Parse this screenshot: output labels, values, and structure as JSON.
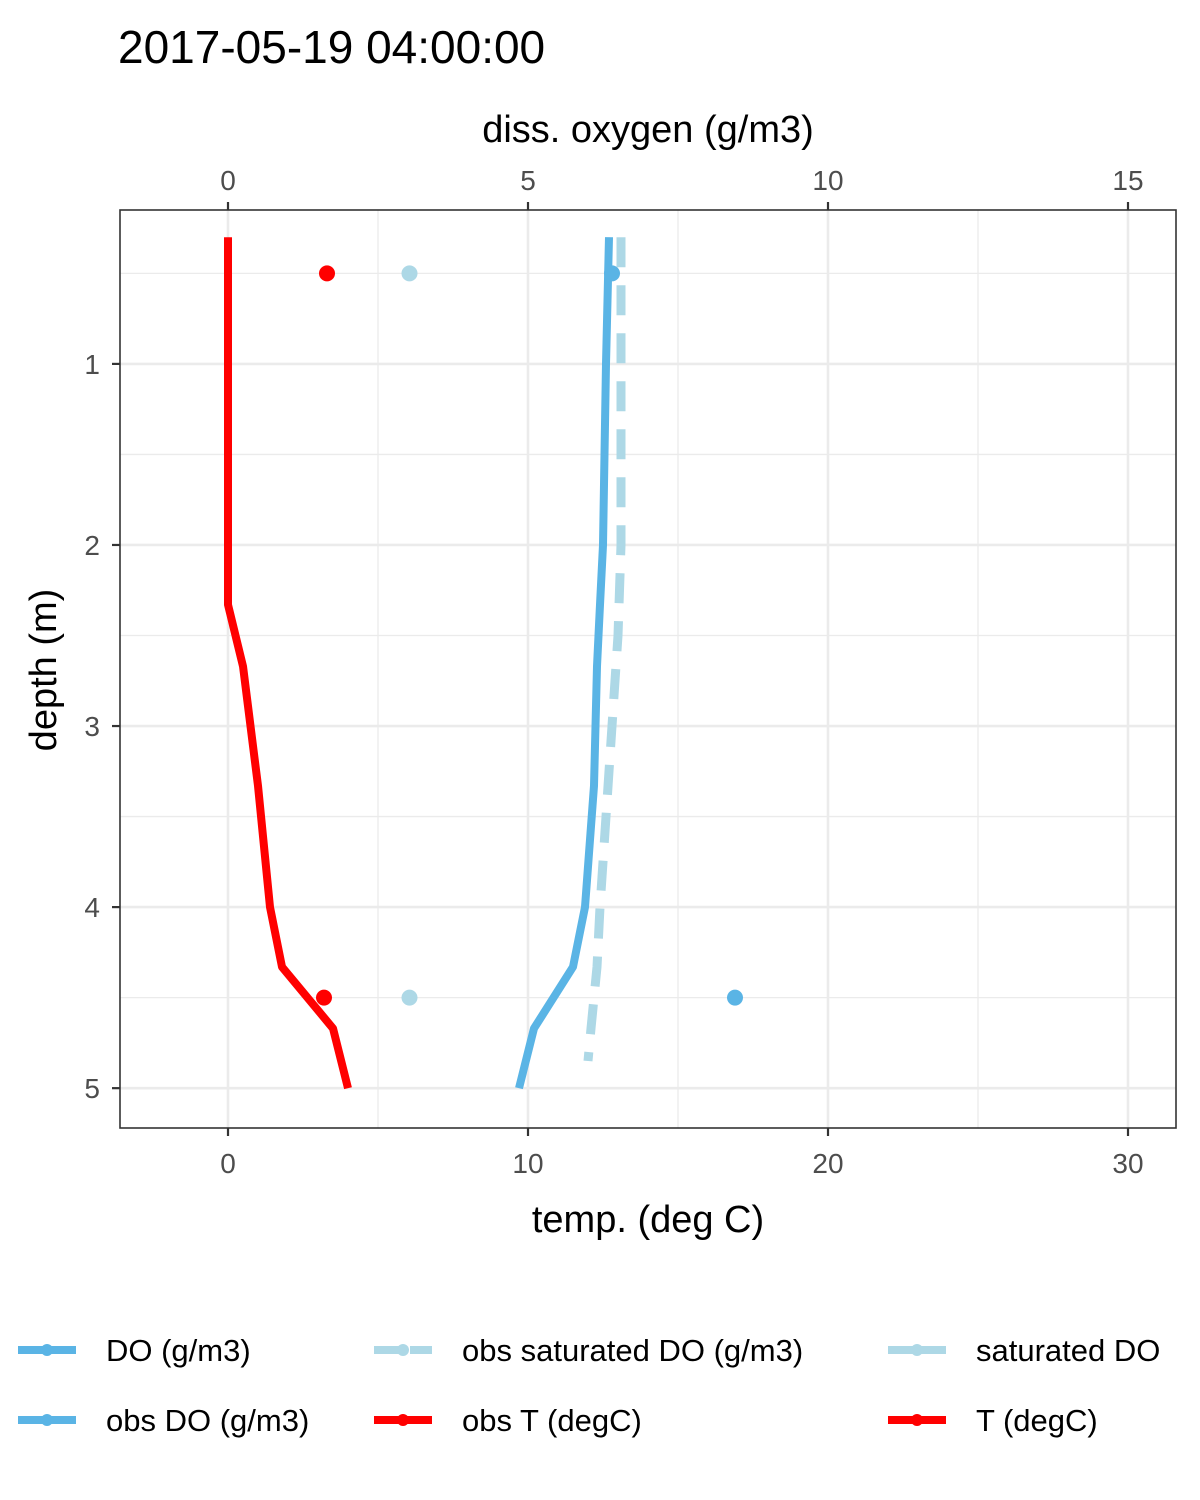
{
  "chart_data": {
    "type": "line",
    "title": "2017-05-19 04:00:00",
    "xlabel": "temp. (deg C)",
    "x2label": "diss. oxygen (g/m3)",
    "ylabel": "depth (m)",
    "xlim": [
      -3.6,
      31.6
    ],
    "x2lim": [
      -1.8,
      15.8
    ],
    "ylim": [
      0.15,
      5.22
    ],
    "y_reversed": true,
    "x_ticks": [
      0,
      10,
      20,
      30
    ],
    "x2_ticks": [
      0,
      5,
      10,
      15
    ],
    "y_ticks": [
      1,
      2,
      3,
      4,
      5
    ],
    "grid": true,
    "series": [
      {
        "name": "T (degC)",
        "axis": "temp",
        "color": "#ff0000",
        "style": "solid",
        "points": [
          [
            0,
            0.3
          ],
          [
            0,
            1.0
          ],
          [
            0,
            2.0
          ],
          [
            0,
            2.33
          ],
          [
            0.5,
            2.67
          ],
          [
            1.0,
            3.33
          ],
          [
            1.4,
            4.0
          ],
          [
            1.8,
            4.33
          ],
          [
            3.5,
            4.67
          ],
          [
            4.0,
            5.0
          ]
        ]
      },
      {
        "name": "DO (g/m3)",
        "axis": "do",
        "color": "#5ab4e5",
        "style": "solid",
        "points": [
          [
            6.35,
            0.3
          ],
          [
            6.3,
            1.0
          ],
          [
            6.25,
            2.0
          ],
          [
            6.2,
            2.33
          ],
          [
            6.15,
            2.67
          ],
          [
            6.1,
            3.33
          ],
          [
            5.95,
            4.0
          ],
          [
            5.75,
            4.33
          ],
          [
            5.1,
            4.67
          ],
          [
            4.85,
            5.0
          ]
        ]
      },
      {
        "name": "saturated DO",
        "axis": "do",
        "color": "#add8e6",
        "style": "dashed",
        "points": [
          [
            6.55,
            0.3
          ],
          [
            6.55,
            1.0
          ],
          [
            6.55,
            2.0
          ],
          [
            6.5,
            2.5
          ],
          [
            6.4,
            3.0
          ],
          [
            6.3,
            3.5
          ],
          [
            6.2,
            4.0
          ],
          [
            6.15,
            4.33
          ],
          [
            6.05,
            4.67
          ],
          [
            6.0,
            4.85
          ]
        ]
      }
    ],
    "observations": [
      {
        "name": "obs T (degC)",
        "axis": "temp",
        "color": "#ff0000",
        "points": [
          [
            3.3,
            0.5
          ],
          [
            3.2,
            4.5
          ]
        ]
      },
      {
        "name": "obs saturated DO (g/m3)",
        "axis": "temp",
        "color": "#add8e6",
        "points": [
          [
            6.05,
            0.5
          ],
          [
            6.05,
            4.5
          ]
        ]
      },
      {
        "name": "obs DO (g/m3)",
        "axis": "do",
        "color": "#5ab4e5",
        "points": [
          [
            6.4,
            0.5
          ],
          [
            8.45,
            4.5
          ]
        ]
      }
    ],
    "legend": {
      "position": "bottom",
      "entries": [
        {
          "label": "DO (g/m3)",
          "color": "#5ab4e5",
          "style": "solid"
        },
        {
          "label": "obs saturated DO (g/m3)",
          "color": "#add8e6",
          "style": "dashed"
        },
        {
          "label": "saturated DO",
          "color": "#add8e6",
          "style": "solid"
        },
        {
          "label": "obs DO (g/m3)",
          "color": "#5ab4e5",
          "style": "solid"
        },
        {
          "label": "obs T (degC)",
          "color": "#ff0000",
          "style": "solid"
        },
        {
          "label": "T (degC)",
          "color": "#ff0000",
          "style": "solid"
        }
      ]
    }
  }
}
